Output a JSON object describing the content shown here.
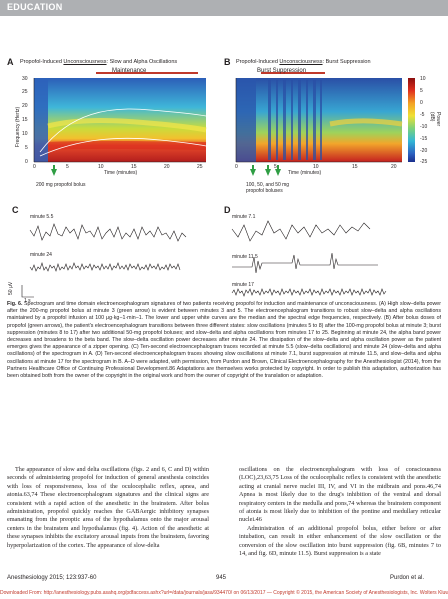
{
  "section_label": "EDUCATION",
  "panels": {
    "a_letter": "A",
    "a_title_pre": "Propofol-Induced ",
    "a_title_u": "Unconsciousness",
    "a_title_post": ": Slow and Alpha Oscillations",
    "a_bar_label": "Maintenance",
    "b_letter": "B",
    "b_title_pre": "Propofol-Induced ",
    "b_title_u": "Unconsciousness",
    "b_title_post": ": Burst Suppression",
    "b_bar_label": "Burst Suppression",
    "ylabel": "Frequency (Hertz)",
    "yticks": [
      "0",
      "5",
      "10",
      "15",
      "20",
      "25",
      "30"
    ],
    "a_xticks": [
      "0",
      "5",
      "10",
      "15",
      "20",
      "25"
    ],
    "b_xticks": [
      "0",
      "5",
      "10",
      "15",
      "20"
    ],
    "xlabel": "Time (minutes)",
    "a_bolus": "200 mg propofol bolus",
    "b_bolus": "100, 50, and 50 mg propofol boluses",
    "power_label": "Power (dB)",
    "power_ticks": [
      "10",
      "5",
      "0",
      "-5",
      "-10",
      "-15",
      "-20",
      "-25"
    ],
    "c_letter": "C",
    "d_letter": "D",
    "c_traces": [
      "minute 5.5",
      "minute 24"
    ],
    "d_traces": [
      "minute 7.1",
      "minute 11.5",
      "minute 17"
    ],
    "scale_v": "50 μV",
    "scale_t": "1 s"
  },
  "caption": {
    "lead": "Fig. 6.",
    "text": " Spectrogram and time domain electroencephalogram signatures of two patients receiving propofol for induction and maintenance of unconsciousness. (A) High slow–delta power after the 200-mg propofol bolus at minute 3 (green arrow) is evident between minutes 3 and 5. The electroencephalogram transitions to robust slow–delta and alpha oscillations maintained by a propofol infusion at 100 μg·kg−1·min−1. The lower and upper white curves are the median and the spectral edge frequencies, respectively. (B) After bolus doses of propofol (green arrows), the patient's electroencephalogram transitions between three different states: slow oscillations (minutes 5 to 8) after the 100-mg propofol bolus at minute 3; burst suppression (minutes 8 to 17) after two additional 50-mg propofol boluses; and slow–delta and alpha oscillations from minutes 17 to 25. Beginning at minute 24, the alpha band power decreases and broadens to the beta band. The slow–delta oscillation power decreases after minute 24. The dissipation of the slow–delta and alpha oscillation power as the patient emerges gives the appearance of a zipper opening. (C) Ten-second electroencephalogram traces recorded at minute 5.5 (slow–delta oscillations) and minute 24 (slow–delta and alpha oscillations) of the spectrogram in A. (D) Ten-second electroencephalogram traces showing slow oscillations at minute 7.1, burst suppression at minute 11.5, and slow–delta and alpha oscillations at minute 17 for the spectrogram in B. A–D were adapted, with permission, from Purdon and Brown, Clinical Electroencephalography for the Anesthesiologist (2014), from the Partners Healthcare Office of Continuing Professional Development.86 Adaptations are themselves works protected by copyright. In order to publish this adaptation, authorization has been obtained both from the owner of the copyright in the original work and from the owner of copyright of the translation or adaptation."
  },
  "body_left": [
    "The appearance of slow and delta oscillations (figs. 2 and 6, C and D) within seconds of administering propofol for induction of general anesthesia coincides with loss of responsiveness, loss of the oculocephalic reflex, apnea, and atonia.63,74 These electroencephalogram signatures and the clinical signs are consistent with a rapid action of the anesthetic in the brainstem. After bolus administration, propofol quickly reaches the GABAergic inhibitory synapses emanating from the preoptic area of the hypothalamus onto the major arousal centers in the brainstem and hypothalamus (fig. 4). Action of the anesthetic at these synapses inhibits the excitatory arousal inputs from the brainstem, favoring hyperpolarization of the cortex. The appearance of slow-delta"
  ],
  "body_right": [
    "oscillations on the electroencephalogram with loss of consciousness (LOC),23,63,75 Loss of the oculocephalic reflex is consistent with the anesthetic acting at cranial nerve nuclei III, IV, and VI in the midbrain and pons.46,74 Apnea is most likely due to the drug's inhibition of the ventral and dorsal respiratory centers in the medulla and pons,74 whereas the brainstem component of atonia is most likely due to inhibition of the pontine and medullary reticular nuclei.46",
    "Administration of an additional propofol bolus, either before or after intubation, can result in either enhancement of the slow oscillation or the conversion of the slow oscillation into burst suppression (fig. 6B, minutes 7 to 14, and fig. 6D, minute 11.5). Burst suppression is a state"
  ],
  "footer": {
    "journal": "Anesthesiology 2015; 123:937-60",
    "page": "945",
    "authors": "Purdon et al."
  },
  "download_line": "Downloaded From: http://anesthesiology.pubs.asahq.org/pdfaccess.ashx?url=/data/journals/jasa/934470/ on 06/13/2017 — Copyright © 2015, the American Society of Anesthesiologists, Inc. Wolters Kluwer Health, Inc. Unauthorized reproduction of this article is prohibited."
}
